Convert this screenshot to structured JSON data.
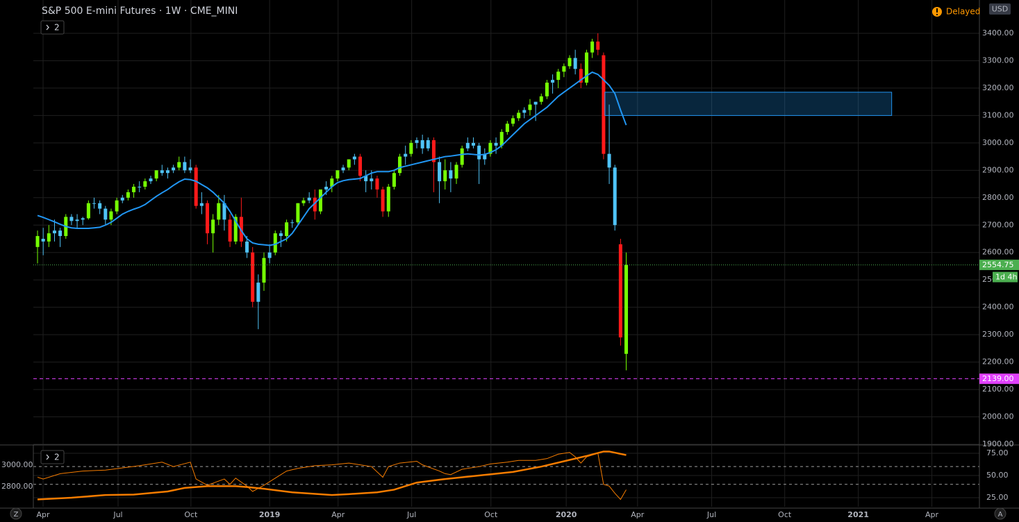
{
  "header": {
    "title": "S&P 500 E-mini Futures · 1W · CME_MINI",
    "collapse_count": "2",
    "status": "Delayed",
    "currency": "USD",
    "left_button": "Z",
    "right_button": "A"
  },
  "chart_data": [
    {
      "type": "candlestick",
      "xlim": [
        -0.74,
        166.4
      ],
      "xticks": [
        {
          "value": 0.98,
          "label": "Apr"
        },
        {
          "value": 14.23,
          "label": "Jul"
        },
        {
          "value": 27.1,
          "label": "Oct"
        },
        {
          "value": 41.0,
          "label": "2019"
        },
        {
          "value": 53.1,
          "label": "Apr"
        },
        {
          "value": 66.1,
          "label": "Jul"
        },
        {
          "value": 80.1,
          "label": "Oct"
        },
        {
          "value": 93.4,
          "label": "2020"
        },
        {
          "value": 106.0,
          "label": "Apr"
        },
        {
          "value": 119.1,
          "label": "Jul"
        },
        {
          "value": 132.0,
          "label": "Oct"
        },
        {
          "value": 145.0,
          "label": "2021"
        },
        {
          "value": 158.0,
          "label": "Apr"
        }
      ],
      "ylim": [
        1900,
        3521.6
      ],
      "yticks": [
        {
          "value": 1900,
          "label": "1900.00"
        },
        {
          "value": 2000,
          "label": "2000.00"
        },
        {
          "value": 2100,
          "label": "2100.00"
        },
        {
          "value": 2200,
          "label": "2200.00"
        },
        {
          "value": 2300,
          "label": "2300.00"
        },
        {
          "value": 2400,
          "label": "2400.00"
        },
        {
          "value": 2500,
          "label": "2500.00"
        },
        {
          "value": 2600,
          "label": "2600.00"
        },
        {
          "value": 2700,
          "label": "2700.00"
        },
        {
          "value": 2800,
          "label": "2800.00"
        },
        {
          "value": 2900,
          "label": "2900.00"
        },
        {
          "value": 3000,
          "label": "3000.00"
        },
        {
          "value": 3100,
          "label": "3100.00"
        },
        {
          "value": 3200,
          "label": "3200.00"
        },
        {
          "value": 3300,
          "label": "3300.00"
        },
        {
          "value": 3400,
          "label": "3400.00"
        }
      ],
      "grid": true,
      "ohlc": [
        [
          2620,
          2680,
          2560,
          2660
        ],
        [
          2650,
          2690,
          2590,
          2640
        ],
        [
          2640,
          2700,
          2620,
          2670
        ],
        [
          2670,
          2720,
          2640,
          2680
        ],
        [
          2680,
          2690,
          2620,
          2660
        ],
        [
          2660,
          2740,
          2650,
          2730
        ],
        [
          2730,
          2740,
          2700,
          2715
        ],
        [
          2715,
          2740,
          2690,
          2720
        ],
        [
          2720,
          2730,
          2700,
          2725
        ],
        [
          2725,
          2790,
          2720,
          2780
        ],
        [
          2780,
          2800,
          2760,
          2780
        ],
        [
          2780,
          2790,
          2740,
          2760
        ],
        [
          2760,
          2770,
          2700,
          2720
        ],
        [
          2720,
          2760,
          2700,
          2750
        ],
        [
          2750,
          2800,
          2740,
          2790
        ],
        [
          2790,
          2810,
          2780,
          2800
        ],
        [
          2800,
          2830,
          2790,
          2820
        ],
        [
          2820,
          2850,
          2800,
          2840
        ],
        [
          2840,
          2860,
          2820,
          2840
        ],
        [
          2840,
          2870,
          2830,
          2860
        ],
        [
          2860,
          2880,
          2850,
          2870
        ],
        [
          2870,
          2900,
          2860,
          2900
        ],
        [
          2900,
          2920,
          2880,
          2890
        ],
        [
          2890,
          2910,
          2870,
          2900
        ],
        [
          2900,
          2920,
          2890,
          2910
        ],
        [
          2910,
          2950,
          2900,
          2930
        ],
        [
          2930,
          2950,
          2890,
          2900
        ],
        [
          2900,
          2940,
          2890,
          2910
        ],
        [
          2910,
          2920,
          2760,
          2770
        ],
        [
          2770,
          2820,
          2740,
          2780
        ],
        [
          2780,
          2790,
          2630,
          2670
        ],
        [
          2670,
          2740,
          2600,
          2720
        ],
        [
          2720,
          2810,
          2700,
          2780
        ],
        [
          2780,
          2810,
          2680,
          2720
        ],
        [
          2720,
          2740,
          2620,
          2640
        ],
        [
          2640,
          2740,
          2630,
          2730
        ],
        [
          2730,
          2800,
          2620,
          2640
        ],
        [
          2640,
          2660,
          2580,
          2600
        ],
        [
          2600,
          2620,
          2400,
          2420
        ],
        [
          2420,
          2520,
          2320,
          2490
        ],
        [
          2490,
          2600,
          2460,
          2580
        ],
        [
          2580,
          2630,
          2560,
          2600
        ],
        [
          2600,
          2680,
          2590,
          2670
        ],
        [
          2670,
          2680,
          2620,
          2660
        ],
        [
          2660,
          2720,
          2640,
          2710
        ],
        [
          2710,
          2720,
          2690,
          2710
        ],
        [
          2710,
          2780,
          2700,
          2780
        ],
        [
          2780,
          2800,
          2770,
          2790
        ],
        [
          2790,
          2820,
          2780,
          2800
        ],
        [
          2800,
          2830,
          2720,
          2750
        ],
        [
          2750,
          2830,
          2740,
          2830
        ],
        [
          2830,
          2860,
          2810,
          2840
        ],
        [
          2840,
          2880,
          2820,
          2870
        ],
        [
          2870,
          2900,
          2860,
          2900
        ],
        [
          2900,
          2920,
          2890,
          2910
        ],
        [
          2910,
          2940,
          2900,
          2940
        ],
        [
          2940,
          2960,
          2920,
          2950
        ],
        [
          2950,
          2960,
          2860,
          2880
        ],
        [
          2880,
          2900,
          2820,
          2860
        ],
        [
          2860,
          2900,
          2830,
          2870
        ],
        [
          2870,
          2880,
          2800,
          2830
        ],
        [
          2830,
          2840,
          2730,
          2750
        ],
        [
          2750,
          2850,
          2730,
          2840
        ],
        [
          2840,
          2900,
          2830,
          2890
        ],
        [
          2890,
          2960,
          2880,
          2950
        ],
        [
          2950,
          2990,
          2920,
          2960
        ],
        [
          2960,
          3010,
          2950,
          3000
        ],
        [
          3000,
          3020,
          2980,
          3010
        ],
        [
          3010,
          3030,
          2960,
          2980
        ],
        [
          2980,
          3020,
          2970,
          3010
        ],
        [
          3010,
          3020,
          2820,
          2930
        ],
        [
          2930,
          2950,
          2780,
          2860
        ],
        [
          2860,
          2940,
          2830,
          2900
        ],
        [
          2900,
          2930,
          2820,
          2870
        ],
        [
          2870,
          2930,
          2850,
          2920
        ],
        [
          2920,
          2990,
          2910,
          2980
        ],
        [
          2980,
          3020,
          2970,
          3000
        ],
        [
          3000,
          3020,
          2980,
          2990
        ],
        [
          2990,
          3000,
          2850,
          2940
        ],
        [
          2940,
          2980,
          2920,
          2960
        ],
        [
          2960,
          3010,
          2950,
          3000
        ],
        [
          3000,
          3020,
          2960,
          2990
        ],
        [
          2990,
          3050,
          2980,
          3040
        ],
        [
          3040,
          3080,
          3030,
          3070
        ],
        [
          3070,
          3100,
          3060,
          3090
        ],
        [
          3090,
          3120,
          3080,
          3110
        ],
        [
          3110,
          3130,
          3090,
          3120
        ],
        [
          3120,
          3160,
          3100,
          3140
        ],
        [
          3140,
          3150,
          3080,
          3150
        ],
        [
          3150,
          3180,
          3140,
          3170
        ],
        [
          3170,
          3230,
          3160,
          3220
        ],
        [
          3220,
          3250,
          3180,
          3230
        ],
        [
          3230,
          3270,
          3200,
          3260
        ],
        [
          3260,
          3290,
          3240,
          3280
        ],
        [
          3280,
          3320,
          3270,
          3310
        ],
        [
          3310,
          3340,
          3250,
          3270
        ],
        [
          3270,
          3290,
          3200,
          3220
        ],
        [
          3220,
          3340,
          3210,
          3330
        ],
        [
          3330,
          3380,
          3310,
          3370
        ],
        [
          3370,
          3400,
          3320,
          3340
        ],
        [
          3320,
          3330,
          2940,
          2960
        ],
        [
          2960,
          3140,
          2850,
          2910
        ],
        [
          2910,
          2920,
          2680,
          2700
        ],
        [
          2630,
          2650,
          2260,
          2290
        ],
        [
          2230,
          2600,
          2170,
          2554.75
        ]
      ],
      "colors": [
        "#76ff03",
        "#4fc3f7",
        "#76ff03",
        "#4fc3f7",
        "#4fc3f7",
        "#76ff03",
        "#4fc3f7",
        "#4fc3f7",
        "#4fc3f7",
        "#76ff03",
        "#4fc3f7",
        "#4fc3f7",
        "#4fc3f7",
        "#76ff03",
        "#76ff03",
        "#4fc3f7",
        "#76ff03",
        "#76ff03",
        "#4fc3f7",
        "#76ff03",
        "#4fc3f7",
        "#76ff03",
        "#4fc3f7",
        "#4fc3f7",
        "#4fc3f7",
        "#76ff03",
        "#4fc3f7",
        "#4fc3f7",
        "#ff1a1a",
        "#4fc3f7",
        "#ff1a1a",
        "#76ff03",
        "#76ff03",
        "#4fc3f7",
        "#ff1a1a",
        "#76ff03",
        "#ff1a1a",
        "#4fc3f7",
        "#ff1a1a",
        "#4fc3f7",
        "#76ff03",
        "#4fc3f7",
        "#76ff03",
        "#4fc3f7",
        "#76ff03",
        "#4fc3f7",
        "#76ff03",
        "#76ff03",
        "#4fc3f7",
        "#ff1a1a",
        "#76ff03",
        "#4fc3f7",
        "#76ff03",
        "#76ff03",
        "#4fc3f7",
        "#76ff03",
        "#4fc3f7",
        "#ff1a1a",
        "#4fc3f7",
        "#4fc3f7",
        "#ff1a1a",
        "#ff1a1a",
        "#76ff03",
        "#76ff03",
        "#76ff03",
        "#4fc3f7",
        "#76ff03",
        "#4fc3f7",
        "#4fc3f7",
        "#4fc3f7",
        "#ff1a1a",
        "#4fc3f7",
        "#76ff03",
        "#4fc3f7",
        "#76ff03",
        "#76ff03",
        "#4fc3f7",
        "#4fc3f7",
        "#4fc3f7",
        "#4fc3f7",
        "#76ff03",
        "#4fc3f7",
        "#76ff03",
        "#76ff03",
        "#76ff03",
        "#76ff03",
        "#4fc3f7",
        "#76ff03",
        "#4fc3f7",
        "#76ff03",
        "#76ff03",
        "#4fc3f7",
        "#76ff03",
        "#76ff03",
        "#76ff03",
        "#4fc3f7",
        "#ff1a1a",
        "#76ff03",
        "#76ff03",
        "#ff1a1a",
        "#ff1a1a",
        "#4fc3f7",
        "#4fc3f7",
        "#ff1a1a",
        "#76ff03"
      ],
      "ma": {
        "color": "#2196f3",
        "values": [
          2735,
          2728,
          2720,
          2712,
          2703,
          2695,
          2690,
          2688,
          2688,
          2688,
          2690,
          2692,
          2700,
          2710,
          2725,
          2740,
          2750,
          2758,
          2765,
          2775,
          2790,
          2805,
          2818,
          2830,
          2845,
          2858,
          2868,
          2866,
          2860,
          2848,
          2836,
          2820,
          2800,
          2780,
          2750,
          2715,
          2680,
          2650,
          2635,
          2630,
          2628,
          2626,
          2630,
          2640,
          2650,
          2670,
          2700,
          2730,
          2760,
          2780,
          2800,
          2820,
          2840,
          2855,
          2862,
          2866,
          2868,
          2870,
          2880,
          2890,
          2895,
          2895,
          2895,
          2900,
          2910,
          2915,
          2920,
          2925,
          2930,
          2935,
          2940,
          2945,
          2950,
          2952,
          2955,
          2958,
          2960,
          2958,
          2956,
          2958,
          2965,
          2975,
          2990,
          3010,
          3030,
          3050,
          3070,
          3085,
          3100,
          3115,
          3130,
          3150,
          3170,
          3185,
          3200,
          3215,
          3230,
          3245,
          3258,
          3250,
          3230,
          3210,
          3180,
          3120,
          3065
        ]
      },
      "price_lines": [
        {
          "value": 2554.75,
          "label": "2554.75",
          "countdown": "1d 4h",
          "color": "#4caf50"
        },
        {
          "value": 2139,
          "label": "2139.00",
          "color": "#e040fb"
        }
      ],
      "zone": {
        "x": [
          100.24,
          150.9
        ],
        "y": [
          3100,
          3185
        ],
        "color": "#2196f3"
      }
    },
    {
      "type": "line",
      "ylim": [
        14.8,
        83.6
      ],
      "yticks": [
        {
          "value": 25,
          "label": "25.00"
        },
        {
          "value": 50,
          "label": "50.00"
        },
        {
          "value": 75,
          "label": "75.00"
        }
      ],
      "y2lim": [
        2612.9,
        3180.6
      ],
      "y2ticks": [
        {
          "value": 2800,
          "label": "2800.00"
        },
        {
          "value": 3000,
          "label": "3000.00"
        }
      ],
      "hlines": [
        60,
        40
      ],
      "series": [
        {
          "color": "#f57c00",
          "width": 1,
          "x": [
            0,
            1,
            4,
            8,
            12,
            18,
            22,
            24,
            27,
            28,
            30,
            33,
            34,
            35,
            37,
            38,
            40,
            42,
            44,
            46,
            49,
            52,
            55,
            57,
            59,
            61,
            62,
            64,
            67,
            68,
            71,
            72,
            73,
            75,
            78,
            80,
            83,
            85,
            88,
            90,
            92,
            94,
            95,
            96,
            97,
            99,
            100,
            101,
            102,
            103,
            104
          ],
          "values": [
            48,
            46,
            52,
            55,
            56,
            61,
            65,
            60,
            65,
            46,
            39,
            46,
            40,
            47,
            38,
            32,
            39,
            47,
            55,
            58,
            61,
            62,
            64,
            62,
            60,
            48,
            60,
            64,
            66,
            62,
            55,
            52,
            51,
            57,
            60,
            63,
            65,
            67,
            67,
            69,
            74,
            76,
            71,
            64,
            71,
            75,
            40,
            38,
            30,
            23,
            34
          ]
        },
        {
          "color": "#f57c00",
          "width": 2.5,
          "x": [
            0,
            6,
            12,
            17,
            23,
            26,
            30,
            35,
            37,
            40,
            45,
            52,
            55,
            60,
            63,
            67,
            72,
            78,
            84,
            89,
            93,
            97,
            100,
            101,
            104
          ],
          "values": [
            23,
            25,
            28,
            28.5,
            32,
            36,
            38,
            38,
            37,
            35,
            31,
            28,
            29,
            31,
            34,
            42,
            46,
            50,
            54,
            60,
            66,
            72,
            77,
            77,
            73
          ]
        }
      ]
    }
  ]
}
